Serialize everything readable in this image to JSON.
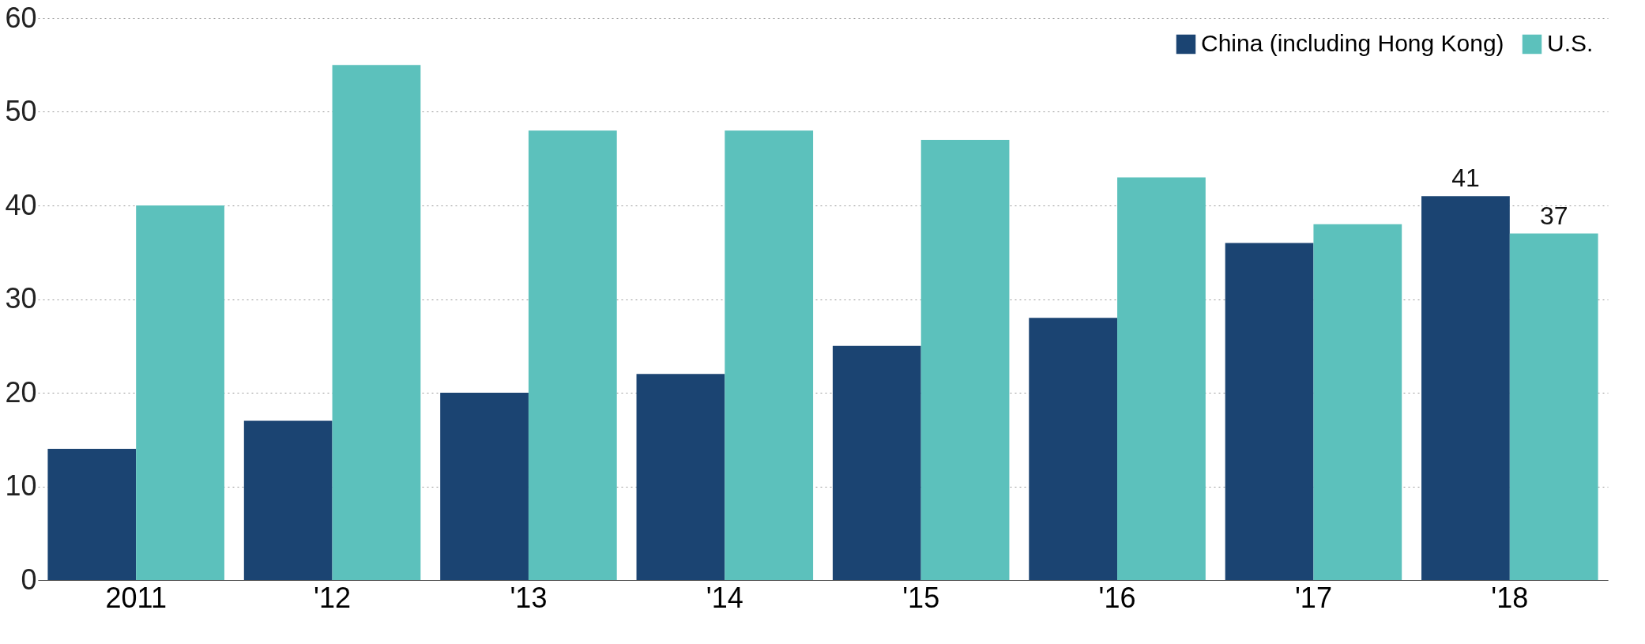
{
  "chart_data": {
    "type": "bar",
    "categories": [
      "2011",
      "'12",
      "'13",
      "'14",
      "'15",
      "'16",
      "'17",
      "'18"
    ],
    "series": [
      {
        "name": "China (including Hong Kong)",
        "color": "#1b4472",
        "values": [
          14,
          17,
          20,
          22,
          25,
          28,
          36,
          41
        ],
        "value_labels": [
          null,
          null,
          null,
          null,
          null,
          null,
          null,
          "41"
        ]
      },
      {
        "name": "U.S.",
        "color": "#5cc1bc",
        "values": [
          40,
          55,
          48,
          48,
          47,
          43,
          38,
          37
        ],
        "value_labels": [
          null,
          null,
          null,
          null,
          null,
          null,
          null,
          "37"
        ]
      }
    ],
    "ylim": [
      0,
      60
    ],
    "yticks": [
      0,
      10,
      20,
      30,
      40,
      50,
      60
    ],
    "grid": "y",
    "legend": "top right"
  }
}
